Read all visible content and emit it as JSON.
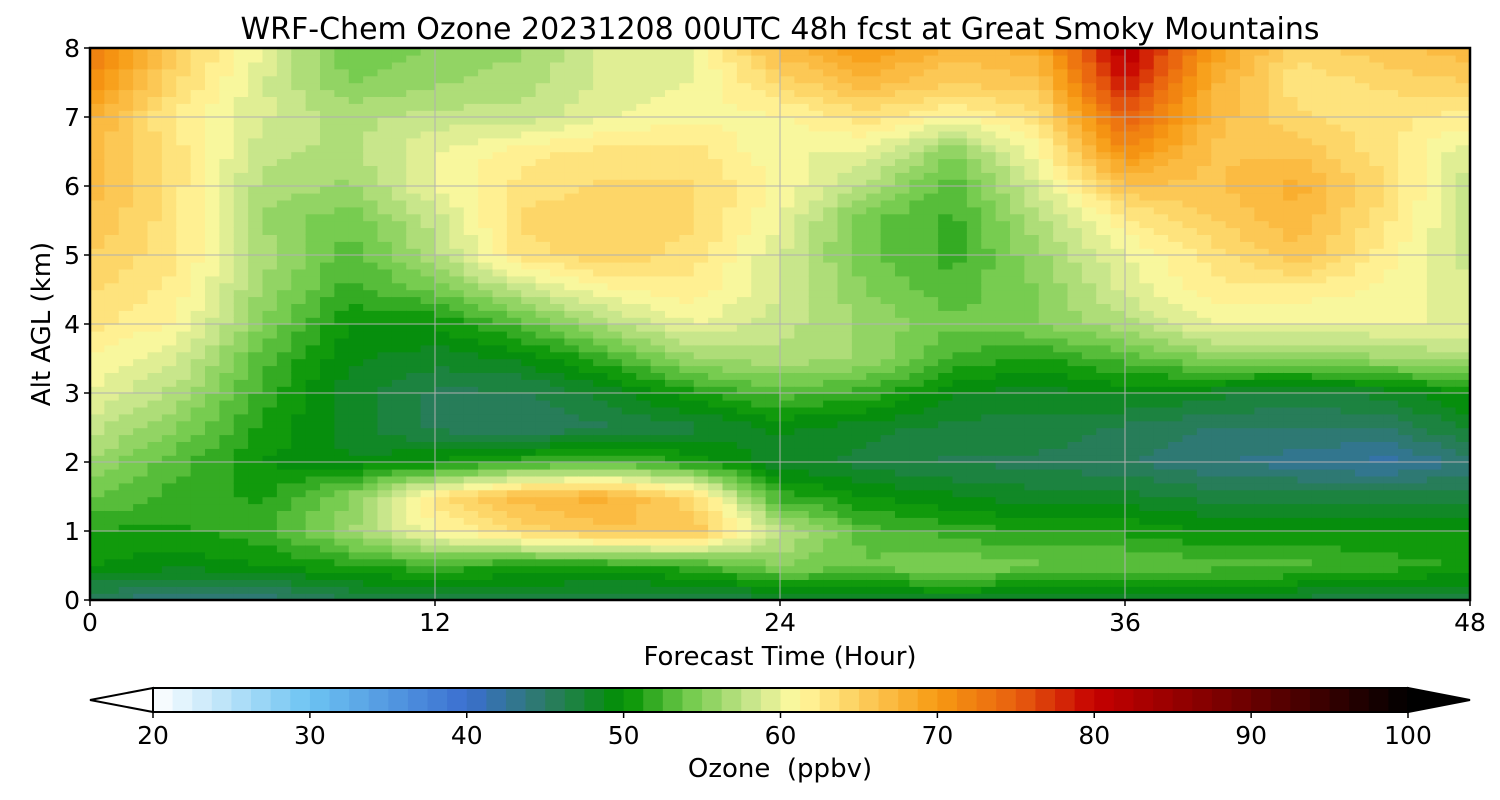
{
  "chart_data": {
    "type": "heatmap",
    "title": "WRF-Chem Ozone  20231208 00UTC 48h fcst at Great Smoky Mountains",
    "xlabel": "Forecast Time (Hour)",
    "ylabel": "Alt AGL (km)",
    "xlim": [
      0,
      48
    ],
    "ylim": [
      0,
      8
    ],
    "x_ticks": [
      0,
      12,
      24,
      36,
      48
    ],
    "y_ticks": [
      0,
      1,
      2,
      3,
      4,
      5,
      6,
      7,
      8
    ],
    "grid": true,
    "x": [
      0,
      3,
      6,
      9,
      12,
      15,
      18,
      21,
      24,
      27,
      30,
      33,
      36,
      39,
      42,
      45,
      48
    ],
    "y": [
      0,
      0.5,
      1,
      1.5,
      2,
      2.5,
      3,
      3.5,
      4,
      4.5,
      5,
      5.5,
      6,
      6.5,
      7,
      7.5,
      8
    ],
    "z": [
      [
        45,
        44,
        44,
        46,
        47,
        47,
        46,
        46,
        47,
        48,
        48,
        48,
        48,
        48,
        47,
        46,
        47
      ],
      [
        50,
        49,
        50,
        51,
        52,
        51,
        51,
        52,
        55,
        54,
        55,
        54,
        54,
        53,
        53,
        52,
        51
      ],
      [
        51,
        51,
        52,
        56,
        61,
        64,
        66,
        66,
        58,
        53,
        52,
        51,
        51,
        50,
        50,
        50,
        50
      ],
      [
        54,
        52,
        51,
        55,
        63,
        67,
        68,
        64,
        52,
        50,
        49,
        48,
        48,
        47,
        47,
        47,
        47
      ],
      [
        56,
        53,
        50,
        49,
        50,
        52,
        53,
        51,
        48,
        47,
        46,
        46,
        45,
        44,
        43,
        42,
        44
      ],
      [
        58,
        55,
        51,
        48,
        46,
        45,
        46,
        47,
        49,
        48,
        47,
        47,
        46,
        45,
        45,
        45,
        48
      ],
      [
        60,
        57,
        52,
        48,
        46,
        46,
        48,
        51,
        53,
        52,
        49,
        48,
        49,
        48,
        47,
        48,
        50
      ],
      [
        61,
        59,
        53,
        49,
        48,
        49,
        52,
        56,
        57,
        56,
        52,
        51,
        53,
        55,
        55,
        56,
        57
      ],
      [
        63,
        61,
        55,
        50,
        50,
        53,
        57,
        60,
        58,
        56,
        54,
        55,
        57,
        60,
        60,
        60,
        60
      ],
      [
        64,
        62,
        56,
        52,
        54,
        58,
        61,
        62,
        59,
        55,
        53,
        55,
        59,
        62,
        62,
        61,
        59
      ],
      [
        65,
        63,
        57,
        53,
        57,
        63,
        65,
        63,
        59,
        54,
        52,
        56,
        60,
        63,
        66,
        62,
        58
      ],
      [
        66,
        63,
        56,
        54,
        58,
        64,
        65,
        64,
        60,
        54,
        52,
        57,
        62,
        65,
        67,
        63,
        58
      ],
      [
        67,
        63,
        57,
        56,
        60,
        63,
        64,
        64,
        61,
        57,
        53,
        59,
        66,
        66,
        68,
        64,
        58
      ],
      [
        67,
        63,
        58,
        57,
        60,
        62,
        63,
        63,
        60,
        60,
        55,
        61,
        71,
        66,
        66,
        63,
        59
      ],
      [
        68,
        62,
        59,
        57,
        58,
        58,
        60,
        61,
        61,
        63,
        61,
        63,
        75,
        67,
        64,
        63,
        62
      ],
      [
        71,
        64,
        59,
        55,
        56,
        57,
        59,
        60,
        64,
        67,
        65,
        66,
        79,
        68,
        63,
        64,
        65
      ],
      [
        73,
        65,
        60,
        54,
        55,
        56,
        59,
        60,
        67,
        70,
        67,
        68,
        82,
        70,
        64,
        66,
        67
      ]
    ],
    "colormap": {
      "label": "Ozone  (ppbv)",
      "range": [
        20,
        100
      ],
      "ticks": [
        20,
        30,
        40,
        50,
        60,
        70,
        80,
        90,
        100
      ],
      "extend": "both",
      "stops": [
        {
          "v": 20,
          "c": "#ffffff"
        },
        {
          "v": 30,
          "c": "#6cc3f2"
        },
        {
          "v": 40,
          "c": "#3b6fd0"
        },
        {
          "v": 45,
          "c": "#2c7a66"
        },
        {
          "v": 50,
          "c": "#009100"
        },
        {
          "v": 54,
          "c": "#6fc94a"
        },
        {
          "v": 58,
          "c": "#c6e58a"
        },
        {
          "v": 61,
          "c": "#fff9a0"
        },
        {
          "v": 65,
          "c": "#fdcf5e"
        },
        {
          "v": 70,
          "c": "#f79a12"
        },
        {
          "v": 75,
          "c": "#e8600f"
        },
        {
          "v": 80,
          "c": "#c60000"
        },
        {
          "v": 90,
          "c": "#6a0000"
        },
        {
          "v": 100,
          "c": "#000000"
        }
      ]
    }
  }
}
